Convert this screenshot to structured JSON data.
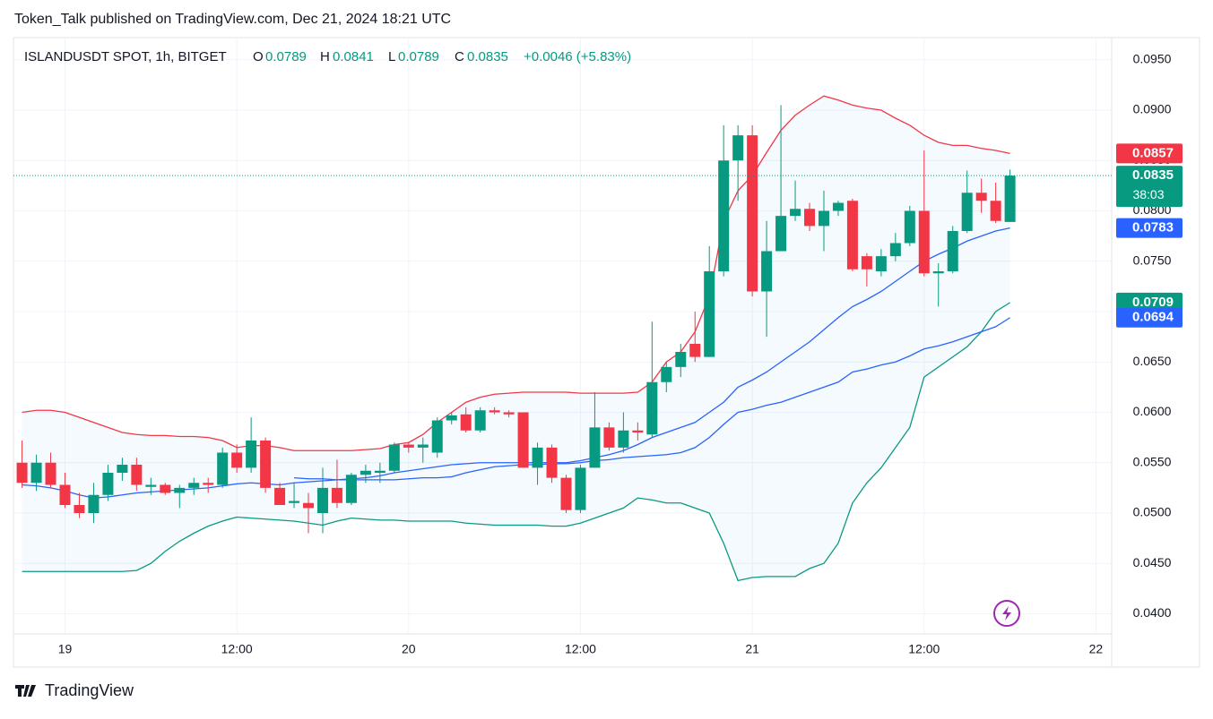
{
  "header": "Token_Talk published on TradingView.com, Dec 21, 2024 18:21 UTC",
  "chart_data": {
    "type": "candlestick",
    "legend": {
      "symbol": "ISLANDUSDT SPOT, 1h, BITGET",
      "o_label": "O",
      "o": 0.0789,
      "h_label": "H",
      "h": 0.0841,
      "l_label": "L",
      "l": 0.0789,
      "c_label": "C",
      "c": 0.0835,
      "change": "+0.0046 (+5.83%)"
    },
    "up_color": "#089981",
    "down_color": "#f23645",
    "open": [
      0.055,
      0.053,
      0.055,
      0.0528,
      0.0508,
      0.05,
      0.0518,
      0.054,
      0.0548,
      0.0526,
      0.0528,
      0.052,
      0.0525,
      0.053,
      0.0528,
      0.056,
      0.0545,
      0.0572,
      0.0525,
      0.051,
      0.051,
      0.05,
      0.0525,
      0.051,
      0.0538,
      0.054,
      0.0542,
      0.0568,
      0.0565,
      0.056,
      0.0592,
      0.0598,
      0.0582,
      0.0602,
      0.06,
      0.06,
      0.0545,
      0.0565,
      0.0535,
      0.0503,
      0.0545,
      0.0585,
      0.0565,
      0.0582,
      0.0578,
      0.063,
      0.0645,
      0.0668,
      0.0655,
      0.074,
      0.085,
      0.0875,
      0.072,
      0.076,
      0.0795,
      0.0802,
      0.0785,
      0.08,
      0.081,
      0.0755,
      0.074,
      0.0755,
      0.0768,
      0.08,
      0.0738,
      0.074,
      0.078,
      0.0818,
      0.081,
      0.0789
    ],
    "high": [
      0.0572,
      0.0558,
      0.056,
      0.054,
      0.052,
      0.053,
      0.0548,
      0.0555,
      0.0555,
      0.0535,
      0.053,
      0.0528,
      0.0535,
      0.0535,
      0.0565,
      0.0568,
      0.0595,
      0.0575,
      0.053,
      0.053,
      0.052,
      0.0545,
      0.0553,
      0.054,
      0.0548,
      0.055,
      0.057,
      0.057,
      0.0575,
      0.0595,
      0.06,
      0.0605,
      0.0605,
      0.0605,
      0.0602,
      0.06,
      0.057,
      0.0568,
      0.0538,
      0.0548,
      0.062,
      0.059,
      0.06,
      0.059,
      0.069,
      0.065,
      0.0668,
      0.07,
      0.0765,
      0.0885,
      0.0885,
      0.0885,
      0.079,
      0.0905,
      0.083,
      0.0808,
      0.082,
      0.081,
      0.0812,
      0.0758,
      0.0762,
      0.0778,
      0.0805,
      0.086,
      0.0748,
      0.0785,
      0.084,
      0.0832,
      0.0828,
      0.0841
    ],
    "low": [
      0.0525,
      0.0522,
      0.0525,
      0.0505,
      0.0495,
      0.049,
      0.0512,
      0.0532,
      0.0522,
      0.0518,
      0.0518,
      0.0505,
      0.0518,
      0.052,
      0.0525,
      0.054,
      0.054,
      0.052,
      0.0508,
      0.0505,
      0.048,
      0.048,
      0.0505,
      0.0508,
      0.053,
      0.053,
      0.054,
      0.056,
      0.055,
      0.0555,
      0.0588,
      0.058,
      0.058,
      0.0598,
      0.0595,
      0.0545,
      0.0528,
      0.053,
      0.05,
      0.05,
      0.0545,
      0.0562,
      0.056,
      0.0572,
      0.0575,
      0.062,
      0.0635,
      0.065,
      0.0655,
      0.0735,
      0.081,
      0.0715,
      0.0675,
      0.076,
      0.079,
      0.078,
      0.076,
      0.0795,
      0.074,
      0.0725,
      0.0735,
      0.075,
      0.0765,
      0.0735,
      0.0705,
      0.0738,
      0.0778,
      0.0798,
      0.0788,
      0.0789
    ],
    "close": [
      0.053,
      0.055,
      0.0528,
      0.0508,
      0.05,
      0.0518,
      0.054,
      0.0548,
      0.0528,
      0.0528,
      0.052,
      0.0525,
      0.053,
      0.0528,
      0.056,
      0.0545,
      0.0572,
      0.0525,
      0.0508,
      0.0512,
      0.0505,
      0.0525,
      0.051,
      0.0538,
      0.0542,
      0.0542,
      0.0568,
      0.0565,
      0.0568,
      0.0592,
      0.0597,
      0.0582,
      0.0602,
      0.06,
      0.0598,
      0.0545,
      0.0565,
      0.0535,
      0.0503,
      0.0545,
      0.0585,
      0.0565,
      0.0582,
      0.058,
      0.063,
      0.0645,
      0.066,
      0.0655,
      0.074,
      0.085,
      0.0875,
      0.072,
      0.076,
      0.0795,
      0.0802,
      0.0785,
      0.08,
      0.0808,
      0.0742,
      0.0742,
      0.0755,
      0.0768,
      0.08,
      0.0738,
      0.074,
      0.078,
      0.0818,
      0.081,
      0.079,
      0.0835
    ],
    "series": [
      {
        "color": "#f23645",
        "values": [
          0.06,
          0.0602,
          0.0602,
          0.06,
          0.0595,
          0.059,
          0.0585,
          0.058,
          0.0578,
          0.0577,
          0.0577,
          0.0576,
          0.0576,
          0.0575,
          0.0572,
          0.0565,
          0.0567,
          0.0567,
          0.0565,
          0.0562,
          0.0562,
          0.0562,
          0.0562,
          0.0562,
          0.0563,
          0.0564,
          0.0568,
          0.057,
          0.0578,
          0.059,
          0.06,
          0.061,
          0.0615,
          0.0618,
          0.0619,
          0.062,
          0.062,
          0.062,
          0.062,
          0.0619,
          0.0619,
          0.0619,
          0.0619,
          0.062,
          0.063,
          0.065,
          0.066,
          0.068,
          0.0715,
          0.079,
          0.082,
          0.0835,
          0.0858,
          0.088,
          0.0895,
          0.0905,
          0.0914,
          0.091,
          0.0905,
          0.0902,
          0.09,
          0.0892,
          0.0885,
          0.0875,
          0.0868,
          0.0865,
          0.0865,
          0.0862,
          0.086,
          0.0857
        ]
      },
      {
        "color": "#2962ff",
        "values": [
          0.0528,
          0.0527,
          0.0525,
          0.0522,
          0.0518,
          0.0515,
          0.0516,
          0.0518,
          0.052,
          0.0521,
          0.0522,
          0.0523,
          0.0524,
          0.0525,
          0.0527,
          0.0529,
          0.053,
          0.0529,
          0.0528,
          0.053,
          0.0531,
          0.0532,
          0.0533,
          0.0534,
          0.0535,
          0.0537,
          0.054,
          0.0542,
          0.0544,
          0.0546,
          0.0548,
          0.0549,
          0.055,
          0.055,
          0.055,
          0.055,
          0.055,
          0.055,
          0.055,
          0.0552,
          0.0555,
          0.0558,
          0.0562,
          0.0568,
          0.0575,
          0.058,
          0.0585,
          0.059,
          0.06,
          0.061,
          0.0625,
          0.0632,
          0.064,
          0.065,
          0.066,
          0.067,
          0.0682,
          0.0694,
          0.0705,
          0.0712,
          0.072,
          0.073,
          0.074,
          0.075,
          0.0757,
          0.0763,
          0.077,
          0.0775,
          0.078,
          0.0783
        ]
      },
      {
        "color": "#089981",
        "values": [
          0.0442,
          0.0442,
          0.0442,
          0.0442,
          0.0442,
          0.0442,
          0.0442,
          0.0442,
          0.0443,
          0.045,
          0.0462,
          0.0472,
          0.048,
          0.0487,
          0.0492,
          0.0496,
          0.0495,
          0.0494,
          0.0493,
          0.0492,
          0.049,
          0.0488,
          0.0492,
          0.0495,
          0.0494,
          0.0493,
          0.0493,
          0.0492,
          0.0492,
          0.0492,
          0.0492,
          0.049,
          0.0489,
          0.0488,
          0.0488,
          0.0488,
          0.0488,
          0.0487,
          0.0487,
          0.049,
          0.0495,
          0.05,
          0.0505,
          0.0515,
          0.0513,
          0.051,
          0.051,
          0.0505,
          0.05,
          0.047,
          0.0433,
          0.0436,
          0.0437,
          0.0437,
          0.0437,
          0.0445,
          0.045,
          0.047,
          0.051,
          0.053,
          0.0545,
          0.0565,
          0.0585,
          0.0635,
          0.0645,
          0.0655,
          0.0665,
          0.068,
          0.07,
          0.0709
        ]
      },
      {
        "color": "#2962ff",
        "values": [
          null,
          null,
          null,
          null,
          null,
          null,
          null,
          null,
          null,
          null,
          null,
          null,
          null,
          null,
          null,
          null,
          null,
          null,
          null,
          0.0535,
          0.0534,
          0.0534,
          0.0533,
          0.0533,
          0.0533,
          0.0533,
          0.0533,
          0.0534,
          0.0535,
          0.0535,
          0.0536,
          0.054,
          0.0543,
          0.0546,
          0.0547,
          0.0548,
          0.0548,
          0.0549,
          0.0549,
          0.055,
          0.0552,
          0.0553,
          0.0555,
          0.0556,
          0.0557,
          0.0558,
          0.056,
          0.0565,
          0.0575,
          0.0588,
          0.06,
          0.0603,
          0.0607,
          0.061,
          0.0615,
          0.062,
          0.0625,
          0.063,
          0.064,
          0.0643,
          0.0647,
          0.065,
          0.0656,
          0.0663,
          0.0666,
          0.067,
          0.0675,
          0.068,
          0.0685,
          0.0694
        ]
      }
    ],
    "countdown": "38:03",
    "ylim": [
      0.038,
      0.0972
    ],
    "yticks": [
      {
        "value": 0.04,
        "label": "0.0400"
      },
      {
        "value": 0.045,
        "label": "0.0450"
      },
      {
        "value": 0.05,
        "label": "0.0500"
      },
      {
        "value": 0.055,
        "label": "0.0550"
      },
      {
        "value": 0.06,
        "label": "0.0600"
      },
      {
        "value": 0.065,
        "label": "0.0650"
      },
      {
        "value": 0.07,
        "label": "0.0700"
      },
      {
        "value": 0.075,
        "label": "0.0750"
      },
      {
        "value": 0.08,
        "label": "0.0800"
      },
      {
        "value": 0.085,
        "label": "0.0850"
      },
      {
        "value": 0.09,
        "label": "0.0900"
      },
      {
        "value": 0.095,
        "label": "0.0950"
      }
    ],
    "xlim": [
      -0.6,
      76.1
    ],
    "xticks": [
      {
        "value": 3,
        "label": "19"
      },
      {
        "value": 15,
        "label": "12:00"
      },
      {
        "value": 27,
        "label": "20"
      },
      {
        "value": 39,
        "label": "12:00"
      },
      {
        "value": 51,
        "label": "21"
      },
      {
        "value": 63,
        "label": "12:00"
      },
      {
        "value": 75,
        "label": "22"
      }
    ],
    "grid": true
  },
  "footer": "TradingView"
}
